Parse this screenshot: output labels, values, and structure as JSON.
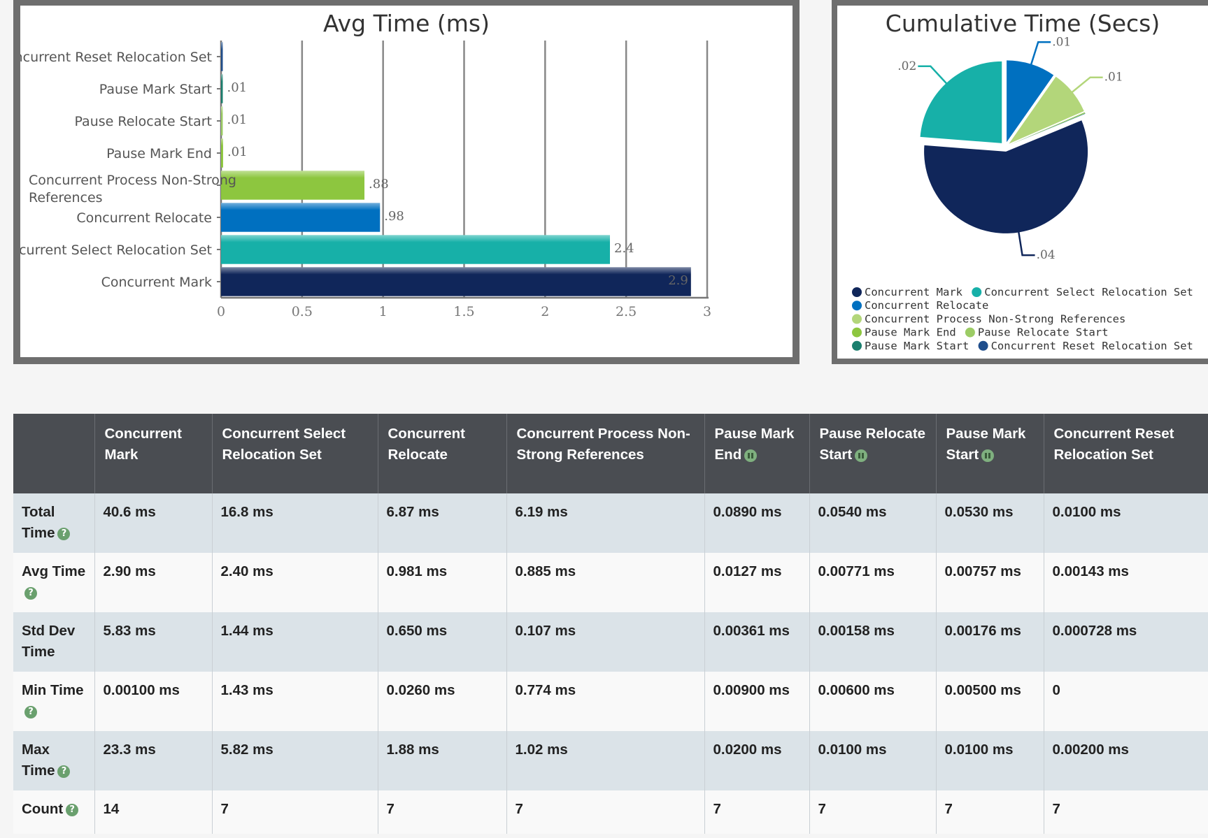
{
  "chart_data": [
    {
      "type": "bar",
      "orientation": "horizontal",
      "title": "Avg Time (ms)",
      "categories": [
        "Concurrent Reset Relocation Set",
        "Pause Mark Start",
        "Pause Relocate Start",
        "Pause Mark End",
        "Concurrent Process Non-Strong References",
        "Concurrent Relocate",
        "Concurrent Select Relocation Set",
        "Concurrent Mark"
      ],
      "values": [
        0.00143,
        0.00757,
        0.00771,
        0.0127,
        0.885,
        0.981,
        2.4,
        2.9
      ],
      "data_labels": [
        "",
        ".01",
        ".01",
        ".01",
        ".88",
        ".98",
        "2.4",
        "2.9"
      ],
      "colors": [
        "#1f4e8c",
        "#1a7f6e",
        "#9ccc65",
        "#8dc63f",
        "#8dc63f",
        "#0070c0",
        "#17b0a8",
        "#10265a"
      ],
      "xlim": [
        0,
        3
      ],
      "xticks": [
        "0",
        "0.5",
        "1",
        "1.5",
        "2",
        "2.5",
        "3"
      ],
      "grid": true
    },
    {
      "type": "pie",
      "title": "Cumulative Time (Secs)",
      "slices": [
        {
          "name": "Concurrent Mark",
          "value": 0.0406,
          "label": ".04",
          "color": "#10265a"
        },
        {
          "name": "Concurrent Select Relocation Set",
          "value": 0.0168,
          "label": ".02",
          "color": "#17b0a8"
        },
        {
          "name": "Concurrent Relocate",
          "value": 0.00687,
          "label": ".01",
          "color": "#0070c0"
        },
        {
          "name": "Concurrent Process Non-Strong References",
          "value": 0.00619,
          "label": ".01",
          "color": "#b3d67a"
        },
        {
          "name": "Pause Mark End",
          "value": 8.9e-05,
          "label": "",
          "color": "#8dc63f"
        },
        {
          "name": "Pause Relocate Start",
          "value": 5.4e-05,
          "label": "",
          "color": "#9ccc65"
        },
        {
          "name": "Pause Mark Start",
          "value": 5.3e-05,
          "label": "",
          "color": "#1a7f6e"
        },
        {
          "name": "Concurrent Reset Relocation Set",
          "value": 1e-05,
          "label": "",
          "color": "#1f4e8c"
        }
      ],
      "legend_position": "bottom"
    }
  ],
  "table": {
    "headers": [
      {
        "label": "",
        "icon": ""
      },
      {
        "label": "Concurrent Mark",
        "icon": ""
      },
      {
        "label": "Concurrent Select Relocation Set",
        "icon": ""
      },
      {
        "label": "Concurrent Relocate",
        "icon": ""
      },
      {
        "label": "Concurrent Process Non-Strong References",
        "icon": ""
      },
      {
        "label": "Pause Mark End",
        "icon": "pause-icon"
      },
      {
        "label": "Pause Relocate Start",
        "icon": "pause-icon"
      },
      {
        "label": "Pause Mark Start",
        "icon": "pause-icon"
      },
      {
        "label": "Concurrent Reset Relocation Set",
        "icon": ""
      }
    ],
    "rows": [
      {
        "label": "Total Time",
        "help": true,
        "cells": [
          "40.6 ms",
          "16.8 ms",
          "6.87 ms",
          "6.19 ms",
          "0.0890 ms",
          "0.0540 ms",
          "0.0530 ms",
          "0.0100 ms"
        ]
      },
      {
        "label": "Avg Time",
        "help": true,
        "cells": [
          "2.90 ms",
          "2.40 ms",
          "0.981 ms",
          "0.885 ms",
          "0.0127 ms",
          "0.00771 ms",
          "0.00757 ms",
          "0.00143 ms"
        ]
      },
      {
        "label": "Std Dev Time",
        "help": false,
        "cells": [
          "5.83 ms",
          "1.44 ms",
          "0.650 ms",
          "0.107 ms",
          "0.00361 ms",
          "0.00158 ms",
          "0.00176 ms",
          "0.000728 ms"
        ]
      },
      {
        "label": "Min Time",
        "help": true,
        "cells": [
          "0.00100 ms",
          "1.43 ms",
          "0.0260 ms",
          "0.774 ms",
          "0.00900 ms",
          "0.00600 ms",
          "0.00500 ms",
          "0"
        ]
      },
      {
        "label": "Max Time",
        "help": true,
        "cells": [
          "23.3 ms",
          "5.82 ms",
          "1.88 ms",
          "1.02 ms",
          "0.0200 ms",
          "0.0100 ms",
          "0.0100 ms",
          "0.00200 ms"
        ]
      },
      {
        "label": "Count",
        "help": true,
        "cells": [
          "14",
          "7",
          "7",
          "7",
          "7",
          "7",
          "7",
          "7"
        ]
      }
    ],
    "help_glyph": "?"
  }
}
